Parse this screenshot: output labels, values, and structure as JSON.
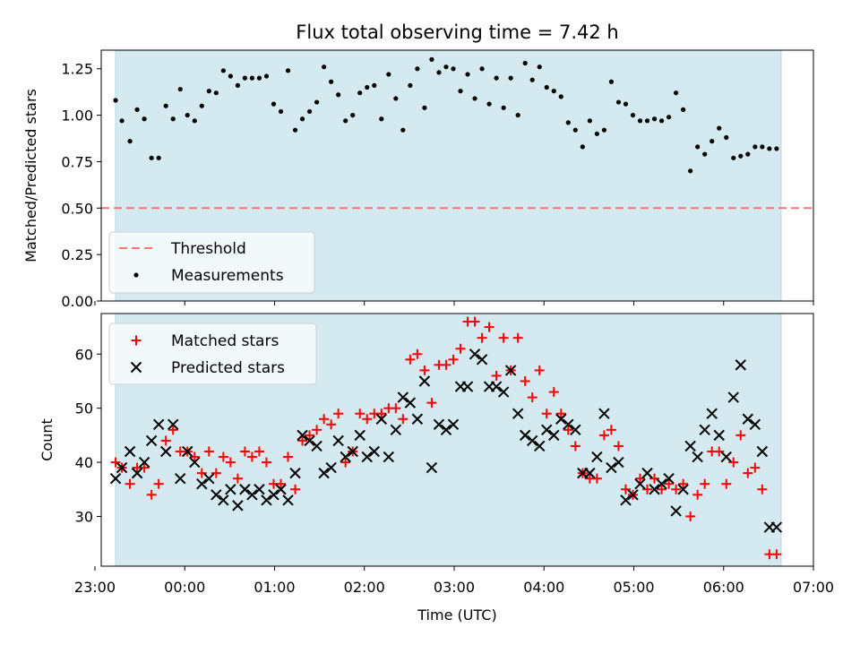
{
  "chart_data": [
    {
      "type": "scatter",
      "title": "Flux total observing time = 7.42 h",
      "xlabel": "",
      "ylabel": "Matched/Predicted stars",
      "ylim": [
        0,
        1.35
      ],
      "yticks": [
        0.0,
        0.25,
        0.5,
        0.75,
        1.0,
        1.25
      ],
      "ytick_labels": [
        "0.00",
        "0.25",
        "0.50",
        "0.75",
        "1.00",
        "1.25"
      ],
      "xlim_hours": [
        -0.93,
        7.0
      ],
      "observing_window_hours": [
        -0.77,
        6.64
      ],
      "observing_window_color": "#d4eaf0",
      "legend_location": "lower-left",
      "threshold": {
        "name": "Threshold",
        "value": 0.5,
        "color": "#f07878",
        "style": "dashed"
      },
      "series": [
        {
          "name": "Measurements",
          "color": "#000000",
          "marker": "dot",
          "x": [
            -0.77,
            -0.7,
            -0.61,
            -0.53,
            -0.45,
            -0.37,
            -0.29,
            -0.21,
            -0.13,
            -0.05,
            0.03,
            0.11,
            0.19,
            0.27,
            0.35,
            0.43,
            0.51,
            0.59,
            0.67,
            0.75,
            0.83,
            0.91,
            0.99,
            1.07,
            1.15,
            1.23,
            1.31,
            1.39,
            1.47,
            1.55,
            1.63,
            1.71,
            1.79,
            1.87,
            1.95,
            2.03,
            2.11,
            2.19,
            2.27,
            2.35,
            2.43,
            2.51,
            2.59,
            2.67,
            2.75,
            2.83,
            2.91,
            2.99,
            3.07,
            3.15,
            3.23,
            3.31,
            3.39,
            3.47,
            3.55,
            3.63,
            3.71,
            3.79,
            3.87,
            3.95,
            4.03,
            4.11,
            4.19,
            4.27,
            4.35,
            4.43,
            4.51,
            4.59,
            4.67,
            4.75,
            4.83,
            4.91,
            4.99,
            5.07,
            5.15,
            5.23,
            5.31,
            5.39,
            5.47,
            5.55,
            5.63,
            5.71,
            5.79,
            5.87,
            5.95,
            6.03,
            6.11,
            6.19,
            6.27,
            6.35,
            6.43,
            6.51,
            6.59
          ],
          "y": [
            1.08,
            0.97,
            0.86,
            1.03,
            0.98,
            0.77,
            0.77,
            1.05,
            0.98,
            1.14,
            1.0,
            0.97,
            1.05,
            1.13,
            1.12,
            1.24,
            1.21,
            1.16,
            1.2,
            1.2,
            1.2,
            1.21,
            1.06,
            1.02,
            1.24,
            0.92,
            0.98,
            1.02,
            1.07,
            1.26,
            1.18,
            1.11,
            0.97,
            1.0,
            1.12,
            1.15,
            1.16,
            0.98,
            1.22,
            1.09,
            0.92,
            1.16,
            1.25,
            1.04,
            1.3,
            1.23,
            1.26,
            1.25,
            1.13,
            1.22,
            1.09,
            1.25,
            1.06,
            1.2,
            1.04,
            1.2,
            1.0,
            1.28,
            1.19,
            1.26,
            1.15,
            1.13,
            1.1,
            0.96,
            0.92,
            0.83,
            0.97,
            0.9,
            0.92,
            1.18,
            1.07,
            1.06,
            1.0,
            0.97,
            0.97,
            0.98,
            0.97,
            0.99,
            1.12,
            1.03,
            0.7,
            0.83,
            0.79,
            0.86,
            0.93,
            0.88,
            0.77,
            0.78,
            0.79,
            0.83,
            0.83,
            0.82,
            0.82
          ]
        }
      ]
    },
    {
      "type": "scatter",
      "title": "",
      "xlabel": "Time (UTC)",
      "ylabel": "Count",
      "ylim": [
        20.8,
        67.5
      ],
      "yticks": [
        30,
        40,
        50,
        60
      ],
      "ytick_labels": [
        "30",
        "40",
        "50",
        "60"
      ],
      "xlim_hours": [
        -0.93,
        7.0
      ],
      "xticks_hours": [
        -1,
        0,
        1,
        2,
        3,
        4,
        5,
        6,
        7
      ],
      "xtick_labels": [
        "23:00",
        "00:00",
        "01:00",
        "02:00",
        "03:00",
        "04:00",
        "05:00",
        "06:00",
        "07:00"
      ],
      "observing_window_hours": [
        -0.77,
        6.64
      ],
      "observing_window_color": "#d4eaf0",
      "legend_location": "top-left",
      "series": [
        {
          "name": "Matched stars",
          "color": "#ff0000",
          "marker": "plus",
          "x": [
            -0.77,
            -0.7,
            -0.61,
            -0.53,
            -0.45,
            -0.37,
            -0.29,
            -0.21,
            -0.13,
            -0.05,
            0.03,
            0.11,
            0.19,
            0.27,
            0.35,
            0.43,
            0.51,
            0.59,
            0.67,
            0.75,
            0.83,
            0.91,
            0.99,
            1.07,
            1.15,
            1.23,
            1.31,
            1.39,
            1.47,
            1.55,
            1.63,
            1.71,
            1.79,
            1.87,
            1.95,
            2.03,
            2.11,
            2.19,
            2.27,
            2.35,
            2.43,
            2.51,
            2.59,
            2.67,
            2.75,
            2.83,
            2.91,
            2.99,
            3.07,
            3.15,
            3.23,
            3.31,
            3.39,
            3.47,
            3.55,
            3.63,
            3.71,
            3.79,
            3.87,
            3.95,
            4.03,
            4.11,
            4.19,
            4.27,
            4.35,
            4.43,
            4.51,
            4.59,
            4.67,
            4.75,
            4.83,
            4.91,
            4.99,
            5.07,
            5.15,
            5.23,
            5.31,
            5.39,
            5.47,
            5.55,
            5.63,
            5.71,
            5.79,
            5.87,
            5.95,
            6.03,
            6.11,
            6.19,
            6.27,
            6.35,
            6.43,
            6.51,
            6.59
          ],
          "y": [
            40,
            39,
            36,
            39,
            39,
            34,
            36,
            44,
            46,
            42,
            42,
            41,
            38,
            42,
            38,
            41,
            40,
            37,
            42,
            41,
            42,
            40,
            36,
            36,
            41,
            35,
            44,
            45,
            46,
            48,
            47,
            49,
            40,
            42,
            49,
            48,
            49,
            49,
            50,
            50,
            48,
            59,
            60,
            57,
            51,
            58,
            58,
            59,
            61,
            66,
            66,
            63,
            65,
            56,
            63,
            57,
            63,
            55,
            52,
            57,
            49,
            53,
            49,
            46,
            43,
            38,
            37,
            37,
            45,
            46,
            43,
            35,
            34,
            37,
            35,
            37,
            35,
            36,
            35,
            36,
            30,
            34,
            36,
            42,
            42,
            36,
            40,
            45,
            38,
            39,
            35,
            23,
            23
          ]
        },
        {
          "name": "Predicted stars",
          "color": "#000000",
          "marker": "x",
          "x": [
            -0.77,
            -0.7,
            -0.61,
            -0.53,
            -0.45,
            -0.37,
            -0.29,
            -0.21,
            -0.13,
            -0.05,
            0.03,
            0.11,
            0.19,
            0.27,
            0.35,
            0.43,
            0.51,
            0.59,
            0.67,
            0.75,
            0.83,
            0.91,
            0.99,
            1.07,
            1.15,
            1.23,
            1.31,
            1.39,
            1.47,
            1.55,
            1.63,
            1.71,
            1.79,
            1.87,
            1.95,
            2.03,
            2.11,
            2.19,
            2.27,
            2.35,
            2.43,
            2.51,
            2.59,
            2.67,
            2.75,
            2.83,
            2.91,
            2.99,
            3.07,
            3.15,
            3.23,
            3.31,
            3.39,
            3.47,
            3.55,
            3.63,
            3.71,
            3.79,
            3.87,
            3.95,
            4.03,
            4.11,
            4.19,
            4.27,
            4.35,
            4.43,
            4.51,
            4.59,
            4.67,
            4.75,
            4.83,
            4.91,
            4.99,
            5.07,
            5.15,
            5.23,
            5.31,
            5.39,
            5.47,
            5.55,
            5.63,
            5.71,
            5.79,
            5.87,
            5.95,
            6.03,
            6.11,
            6.19,
            6.27,
            6.35,
            6.43,
            6.51,
            6.59
          ],
          "y": [
            37,
            39,
            42,
            38,
            40,
            44,
            47,
            42,
            47,
            37,
            42,
            40,
            36,
            37,
            34,
            33,
            35,
            32,
            35,
            34,
            35,
            33,
            34,
            35,
            33,
            38,
            45,
            44,
            43,
            38,
            39,
            44,
            41,
            42,
            45,
            41,
            42,
            48,
            41,
            46,
            52,
            51,
            48,
            55,
            39,
            47,
            46,
            47,
            54,
            54,
            60,
            59,
            54,
            54,
            53,
            57,
            49,
            45,
            44,
            43,
            46,
            45,
            48,
            47,
            46,
            38,
            38,
            41,
            49,
            39,
            40,
            33,
            34,
            36,
            38,
            35,
            36,
            37,
            31,
            35,
            43,
            41,
            46,
            49,
            45,
            41,
            52,
            58,
            48,
            47,
            42,
            28,
            28
          ]
        }
      ]
    }
  ]
}
